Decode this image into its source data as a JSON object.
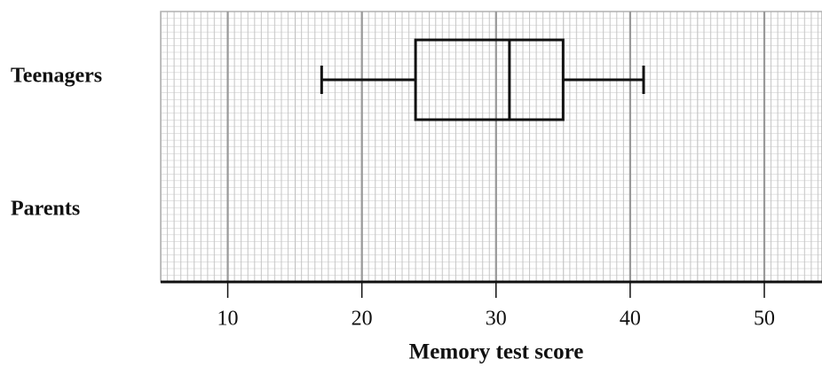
{
  "chart_data": {
    "type": "box",
    "categories": [
      "Teenagers",
      "Parents"
    ],
    "boxes": [
      {
        "min": 17,
        "q1": 24,
        "median": 31,
        "q3": 35,
        "max": 41
      },
      null
    ],
    "x_label": "Memory test score",
    "xlim": [
      5,
      54.3
    ],
    "xticks": [
      10,
      20,
      30,
      40,
      50
    ],
    "grid": true,
    "color": "#111111"
  }
}
